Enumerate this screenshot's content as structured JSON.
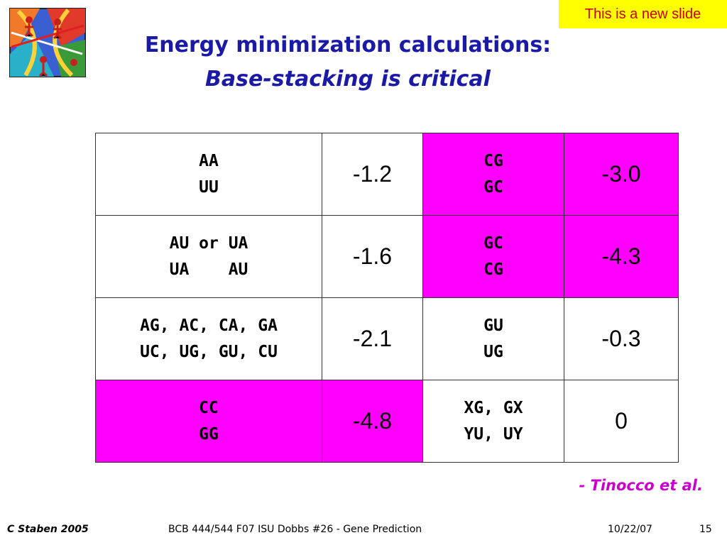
{
  "badge": "This is a new slide",
  "title": {
    "line1": "Energy minimization calculations:",
    "line2": "Base-stacking is critical"
  },
  "table": {
    "rows": [
      {
        "pair1": "AA\nUU",
        "value1": "-1.2",
        "pair1_highlight": false,
        "pair2": "CG\nGC",
        "value2": "-3.0",
        "pair2_highlight": true
      },
      {
        "pair1": "AU or UA\nUA    AU",
        "value1": "-1.6",
        "pair1_highlight": false,
        "pair2": "GC\nCG",
        "value2": "-4.3",
        "pair2_highlight": true
      },
      {
        "pair1": "AG, AC, CA, GA\nUC, UG, GU, CU",
        "value1": "-2.1",
        "pair1_highlight": false,
        "pair2": "GU\nUG",
        "value2": "-0.3",
        "pair2_highlight": false
      },
      {
        "pair1": "CC\nGG",
        "value1": "-4.8",
        "pair1_highlight": true,
        "pair2": "XG, GX\nYU, UY",
        "value2": "0",
        "pair2_highlight": false
      }
    ]
  },
  "credit": "- Tinocco et al.",
  "footer": {
    "left": "C Staben 2005",
    "center": "BCB 444/544 F07 ISU Dobbs #26 - Gene Prediction",
    "date": "10/22/07",
    "page": "15"
  },
  "colors": {
    "highlight": "#ff00ff",
    "title": "#1a1aa6",
    "badge_bg": "#ffff00",
    "credit": "#cc00cc"
  },
  "icons": {
    "clipart": "dna-workers-clipart-icon"
  }
}
